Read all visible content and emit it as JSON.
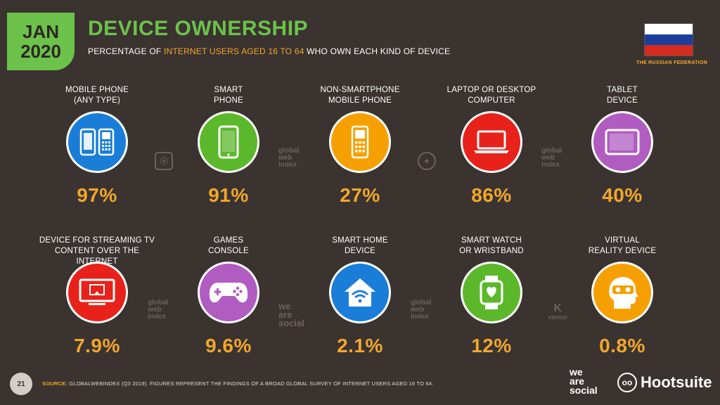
{
  "header": {
    "month": "JAN",
    "year": "2020",
    "title": "DEVICE OWNERSHIP",
    "subtitle_pre": "PERCENTAGE OF ",
    "subtitle_highlight": "INTERNET USERS AGED 16 TO 64",
    "subtitle_post": " WHO OWN EACH KIND OF DEVICE",
    "country": "THE RUSSIAN FEDERATION"
  },
  "flag_colors": [
    "#ffffff",
    "#1c3f9e",
    "#d52b1e"
  ],
  "chart_data": {
    "type": "table",
    "title": "DEVICE OWNERSHIP",
    "items": [
      {
        "label": "MOBILE PHONE\n(ANY TYPE)",
        "value": "97%",
        "color": "#1a7ed8",
        "icon": "mobile-phones-icon"
      },
      {
        "label": "SMART\nPHONE",
        "value": "91%",
        "color": "#5cb82b",
        "icon": "smartphone-icon"
      },
      {
        "label": "NON-SMARTPHONE\nMOBILE PHONE",
        "value": "27%",
        "color": "#f5a000",
        "icon": "feature-phone-icon"
      },
      {
        "label": "LAPTOP OR DESKTOP\nCOMPUTER",
        "value": "86%",
        "color": "#e8221b",
        "icon": "laptop-icon"
      },
      {
        "label": "TABLET\nDEVICE",
        "value": "40%",
        "color": "#b15cc1",
        "icon": "tablet-icon"
      },
      {
        "label": "DEVICE FOR STREAMING TV\nCONTENT OVER THE INTERNET",
        "value": "7.9%",
        "color": "#e8221b",
        "icon": "streaming-tv-icon"
      },
      {
        "label": "GAMES\nCONSOLE",
        "value": "9.6%",
        "color": "#b15cc1",
        "icon": "gamepad-icon"
      },
      {
        "label": "SMART HOME\nDEVICE",
        "value": "2.1%",
        "color": "#1a7ed8",
        "icon": "smart-home-icon"
      },
      {
        "label": "SMART WATCH\nOR WRISTBAND",
        "value": "12%",
        "color": "#5cb82b",
        "icon": "smartwatch-icon"
      },
      {
        "label": "VIRTUAL\nREALITY DEVICE",
        "value": "0.8%",
        "color": "#f5a000",
        "icon": "vr-headset-icon"
      }
    ]
  },
  "watermarks": {
    "gwi_lines": [
      "global",
      "web",
      "index"
    ],
    "was_lines": [
      "we",
      "are",
      "social"
    ],
    "kepios": "KEPIOS"
  },
  "footer": {
    "page_number": "21",
    "source_label": "SOURCE:",
    "source_text": " GLOBALWEBINDEX (Q3 2019). FIGURES REPRESENT THE FINDINGS OF A BROAD GLOBAL SURVEY OF INTERNET USERS AGED 16 TO 64.",
    "brand_was_lines": [
      "we",
      "are",
      "social"
    ],
    "brand_hootsuite": "Hootsuite"
  }
}
